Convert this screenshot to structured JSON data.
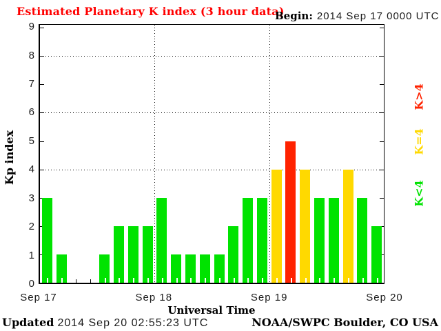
{
  "title": "Estimated Planetary K index (3 hour data)",
  "begin": {
    "label": "Begin:",
    "value": "2014 Sep 17 0000 UTC"
  },
  "y_axis": {
    "label": "Kp index",
    "ticks": [
      0,
      1,
      2,
      3,
      4,
      5,
      6,
      7,
      8,
      9
    ]
  },
  "x_axis": {
    "label": "Universal Time",
    "days": [
      "Sep 17",
      "Sep 18",
      "Sep 19",
      "Sep 20"
    ]
  },
  "legend": {
    "items": [
      {
        "label": "K>4",
        "color": "#ff2200"
      },
      {
        "label": "K=4",
        "color": "#ffd900"
      },
      {
        "label": "K<4",
        "color": "#00e300"
      }
    ]
  },
  "footer": {
    "updated_label": "Updated",
    "updated_value": "2014 Sep 20 02:55:23 UTC",
    "credit": "NOAA/SWPC Boulder, CO USA"
  },
  "colors": {
    "title_red": "#ff0000",
    "bar_green": "#00e300",
    "bar_yellow": "#ffd900",
    "bar_red": "#ff2200"
  },
  "chart_data": {
    "type": "bar",
    "title": "Estimated Planetary K index (3 hour data)",
    "xlabel": "Universal Time",
    "ylabel": "Kp index",
    "ylim": [
      0,
      9
    ],
    "begin": "2014 Sep 17 0000 UTC",
    "bin_hours": 3,
    "bins_per_day": 8,
    "days": [
      "Sep 17",
      "Sep 18",
      "Sep 19"
    ],
    "values": [
      3,
      1,
      0,
      0,
      1,
      2,
      2,
      2,
      3,
      1,
      1,
      1,
      1,
      2,
      3,
      3,
      4,
      5,
      4,
      3,
      3,
      4,
      3,
      2
    ],
    "color_rule": {
      "green": "K<4",
      "yellow": "K=4",
      "red": "K>4"
    },
    "gridlines_y": [
      4,
      6,
      8
    ],
    "grid_style": "dotted",
    "legend_position": "right",
    "updated": "2014 Sep 20 02:55:23 UTC",
    "credit": "NOAA/SWPC Boulder, CO USA"
  }
}
